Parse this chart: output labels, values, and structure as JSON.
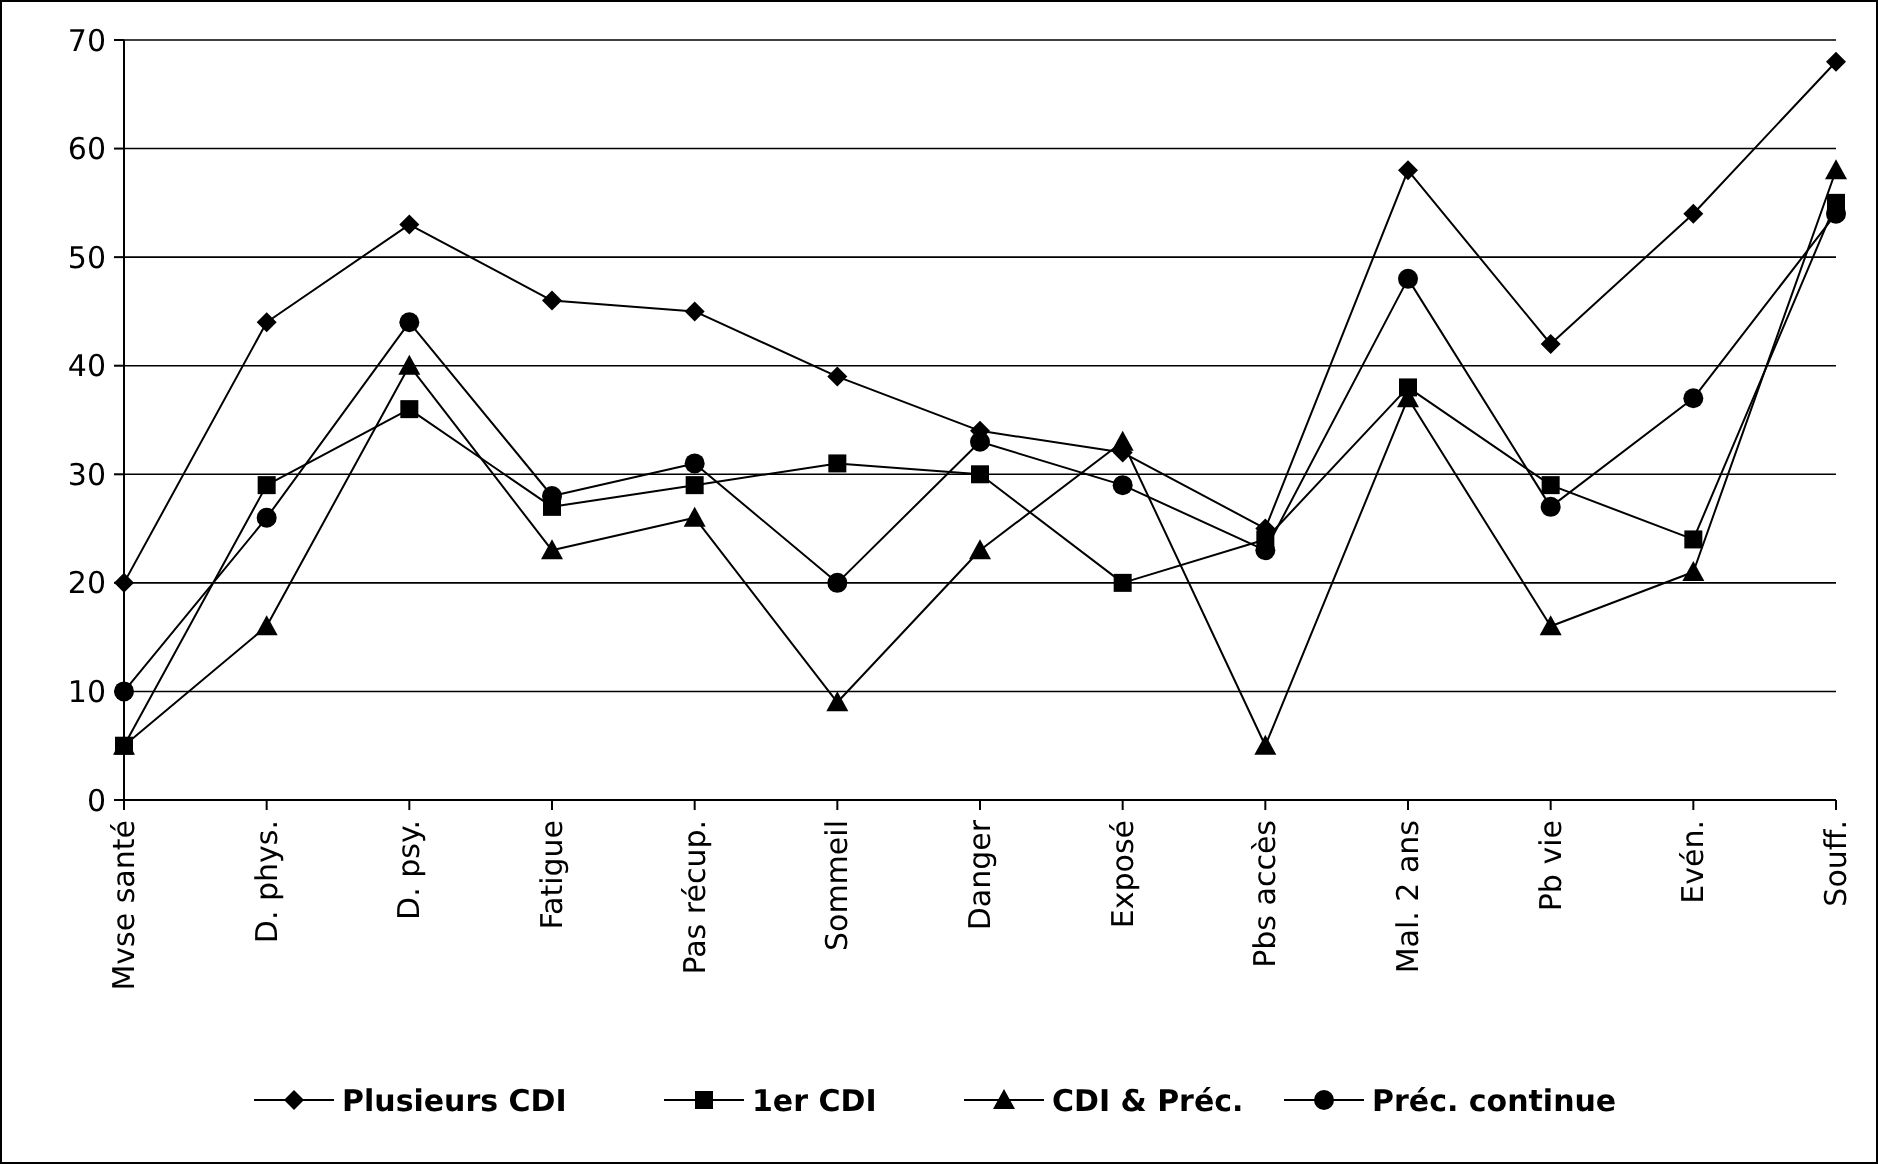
{
  "chart_data": {
    "type": "line",
    "categories": [
      "Mvse santé",
      "D. phys.",
      "D. psy.",
      "Fatigue",
      "Pas récup.",
      "Sommeil",
      "Danger",
      "Exposé",
      "Pbs accès",
      "Mal. 2 ans",
      "Pb vie",
      "Evén.",
      "Souff."
    ],
    "series": [
      {
        "name": "Plusieurs CDI",
        "color": "#000000",
        "marker": "diamond",
        "values": [
          20,
          44,
          53,
          46,
          45,
          39,
          34,
          32,
          25,
          58,
          42,
          54,
          68
        ]
      },
      {
        "name": "1er CDI",
        "color": "#000000",
        "marker": "square",
        "values": [
          5,
          29,
          36,
          27,
          29,
          31,
          30,
          20,
          24,
          38,
          29,
          24,
          55
        ]
      },
      {
        "name": "CDI & Préc.",
        "color": "#000000",
        "marker": "triangle",
        "values": [
          5,
          16,
          40,
          23,
          26,
          9,
          23,
          33,
          5,
          37,
          16,
          21,
          58
        ]
      },
      {
        "name": "Préc. continue",
        "color": "#000000",
        "marker": "circle",
        "values": [
          10,
          26,
          44,
          28,
          31,
          20,
          33,
          29,
          23,
          48,
          27,
          37,
          54
        ]
      }
    ],
    "ylim": [
      0,
      70
    ],
    "yticks": [
      0,
      10,
      20,
      30,
      40,
      50,
      60,
      70
    ],
    "grid": "y",
    "legend": "bottom",
    "line_style": "solid"
  }
}
